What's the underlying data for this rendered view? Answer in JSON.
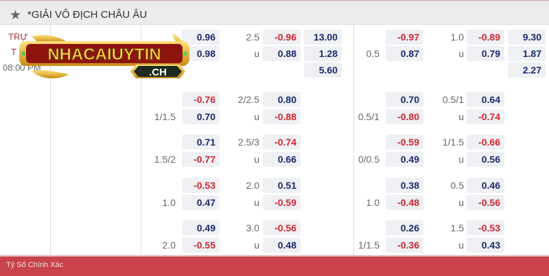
{
  "header": {
    "title": "*GIẢI VÔ ĐỊCH CHÂU ÂU",
    "icon": "star-icon"
  },
  "match": {
    "team1": "TRỰ",
    "team2": "T",
    "time": "08:00 PM"
  },
  "logo": {
    "text": "NHACAIUYTIN",
    "domain": ".CH"
  },
  "colors": {
    "negative": "#d0252f",
    "positive": "#1b2a6b",
    "footer": "#c8434b"
  },
  "groups": [
    {
      "l_hcap": [
        "",
        ""
      ],
      "l_h": [
        "0.96",
        "0.98"
      ],
      "l_ou": [
        "2.5",
        "u"
      ],
      "l_o": [
        "-0.96",
        "0.88"
      ],
      "l_x": [
        "13.00",
        "1.28",
        "5.60"
      ],
      "r_hcap": [
        "",
        "0.5"
      ],
      "r_h": [
        "-0.97",
        "0.87"
      ],
      "r_ou": [
        "1.0",
        "u"
      ],
      "r_o": [
        "-0.89",
        "0.79"
      ],
      "r_x": [
        "9.30",
        "1.87",
        "2.27"
      ]
    },
    {
      "l_hcap": [
        "",
        "1/1.5"
      ],
      "l_h": [
        "-0.76",
        "0.70"
      ],
      "l_ou": [
        "2/2.5",
        "u"
      ],
      "l_o": [
        "0.80",
        "-0.88"
      ],
      "r_hcap": [
        "",
        "0.5/1"
      ],
      "r_h": [
        "0.70",
        "-0.80"
      ],
      "r_ou": [
        "0.5/1",
        "u"
      ],
      "r_o": [
        "0.64",
        "-0.74"
      ]
    },
    {
      "l_hcap": [
        "",
        "1.5/2"
      ],
      "l_h": [
        "0.71",
        "-0.77"
      ],
      "l_ou": [
        "2.5/3",
        "u"
      ],
      "l_o": [
        "-0.74",
        "0.66"
      ],
      "r_hcap": [
        "",
        "0/0.5"
      ],
      "r_h": [
        "-0.59",
        "0.49"
      ],
      "r_ou": [
        "1/1.5",
        "u"
      ],
      "r_o": [
        "-0.66",
        "0.56"
      ]
    },
    {
      "l_hcap": [
        "",
        "1.0"
      ],
      "l_h": [
        "-0.53",
        "0.47"
      ],
      "l_ou": [
        "2.0",
        "u"
      ],
      "l_o": [
        "0.51",
        "-0.59"
      ],
      "r_hcap": [
        "",
        "1.0"
      ],
      "r_h": [
        "0.38",
        "-0.48"
      ],
      "r_ou": [
        "0.5",
        "u"
      ],
      "r_o": [
        "0.46",
        "-0.56"
      ]
    },
    {
      "l_hcap": [
        "",
        "2.0"
      ],
      "l_h": [
        "0.49",
        "-0.55"
      ],
      "l_ou": [
        "3.0",
        "u"
      ],
      "l_o": [
        "-0.56",
        "0.48"
      ],
      "r_hcap": [
        "",
        "1/1.5"
      ],
      "r_h": [
        "0.26",
        "-0.36"
      ],
      "r_ou": [
        "1.5",
        "u"
      ],
      "r_o": [
        "-0.53",
        "0.43"
      ]
    }
  ],
  "footer": {
    "label": "Tỷ Số Chính Xác"
  }
}
